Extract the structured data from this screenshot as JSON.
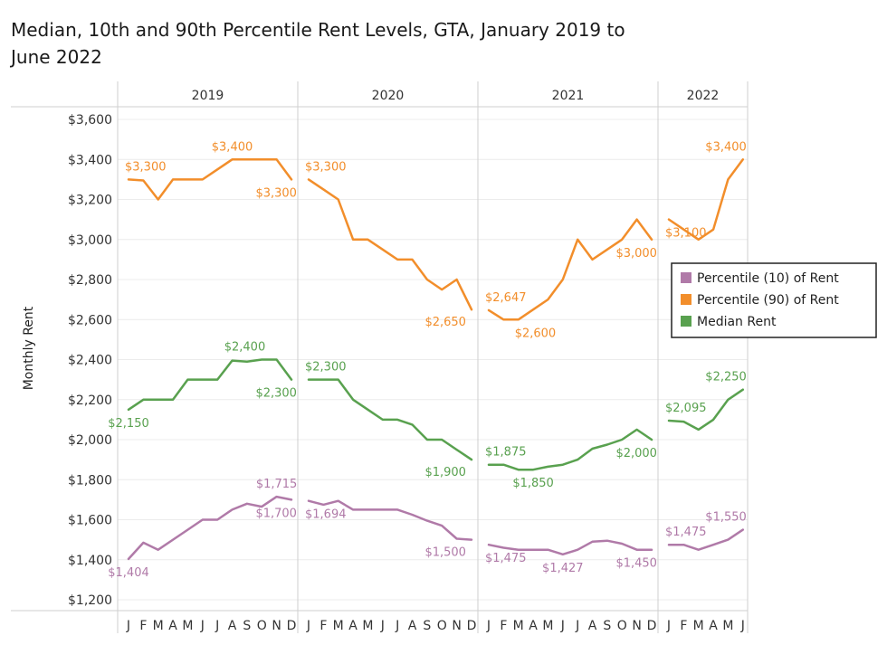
{
  "chart_data": {
    "type": "line",
    "title_lines": [
      "Median, 10th and 90th Percentile Rent Levels, GTA, January 2019 to",
      "June 2022"
    ],
    "ylabel": "Monthly Rent",
    "ylim": [
      1200,
      3600
    ],
    "yticks": [
      1200,
      1400,
      1600,
      1800,
      2000,
      2200,
      2400,
      2600,
      2800,
      3000,
      3200,
      3400,
      3600
    ],
    "ytick_labels": [
      "$1,200",
      "$1,400",
      "$1,600",
      "$1,800",
      "$2,000",
      "$2,200",
      "$2,400",
      "$2,600",
      "$2,800",
      "$3,000",
      "$3,200",
      "$3,400",
      "$3,600"
    ],
    "years": [
      {
        "label": "2019",
        "months": 12
      },
      {
        "label": "2020",
        "months": 12
      },
      {
        "label": "2021",
        "months": 12
      },
      {
        "label": "2022",
        "months": 6
      }
    ],
    "month_letters": [
      "J",
      "F",
      "M",
      "A",
      "M",
      "J",
      "J",
      "A",
      "S",
      "O",
      "N",
      "D"
    ],
    "gridlines": "horizontal",
    "legend_position": "right",
    "series": [
      {
        "name": "Percentile (10) of Rent",
        "color": "#b07aa8",
        "values": [
          [
            1404,
            1485,
            1450,
            1500,
            1550,
            1600,
            1600,
            1650,
            1680,
            1665,
            1715,
            1700
          ],
          [
            1694,
            1675,
            1694,
            1650,
            1650,
            1650,
            1650,
            1625,
            1595,
            1570,
            1505,
            1500
          ],
          [
            1475,
            1460,
            1450,
            1450,
            1450,
            1427,
            1450,
            1490,
            1495,
            1480,
            1450,
            1450
          ],
          [
            1475,
            1475,
            1450,
            1475,
            1500,
            1550
          ]
        ],
        "labels": [
          {
            "year": 0,
            "month": 0,
            "text": "$1,404",
            "pos": "below"
          },
          {
            "year": 0,
            "month": 10,
            "text": "$1,715",
            "pos": "above"
          },
          {
            "year": 0,
            "month": 11,
            "text": "$1,700",
            "pos": "belowleft"
          },
          {
            "year": 1,
            "month": 0,
            "text": "$1,694",
            "pos": "belowright"
          },
          {
            "year": 1,
            "month": 11,
            "text": "$1,500",
            "pos": "left"
          },
          {
            "year": 2,
            "month": 0,
            "text": "$1,475",
            "pos": "belowright"
          },
          {
            "year": 2,
            "month": 5,
            "text": "$1,427",
            "pos": "below"
          },
          {
            "year": 2,
            "month": 11,
            "text": "$1,450",
            "pos": "belowleft"
          },
          {
            "year": 3,
            "month": 0,
            "text": "$1,475",
            "pos": "aboveright"
          },
          {
            "year": 3,
            "month": 5,
            "text": "$1,550",
            "pos": "aboveleft"
          }
        ]
      },
      {
        "name": "Percentile (90) of Rent",
        "color": "#f28e2b",
        "values": [
          [
            3300,
            3295,
            3200,
            3300,
            3300,
            3300,
            3350,
            3400,
            3400,
            3400,
            3400,
            3300
          ],
          [
            3300,
            3250,
            3200,
            3000,
            3000,
            2950,
            2900,
            2900,
            2800,
            2750,
            2800,
            2650
          ],
          [
            2647,
            2600,
            2600,
            2650,
            2700,
            2800,
            3000,
            2900,
            2950,
            3000,
            3100,
            3000
          ],
          [
            3100,
            3050,
            3000,
            3050,
            3300,
            3400
          ]
        ],
        "labels": [
          {
            "year": 0,
            "month": 0,
            "text": "$3,300",
            "pos": "aboveright"
          },
          {
            "year": 0,
            "month": 7,
            "text": "$3,400",
            "pos": "above"
          },
          {
            "year": 0,
            "month": 11,
            "text": "$3,300",
            "pos": "belowleft"
          },
          {
            "year": 1,
            "month": 0,
            "text": "$3,300",
            "pos": "aboveright"
          },
          {
            "year": 1,
            "month": 11,
            "text": "$2,650",
            "pos": "left"
          },
          {
            "year": 2,
            "month": 0,
            "text": "$2,647",
            "pos": "aboveright"
          },
          {
            "year": 2,
            "month": 2,
            "text": "$2,600",
            "pos": "belowright"
          },
          {
            "year": 2,
            "month": 11,
            "text": "$3,000",
            "pos": "belowleft"
          },
          {
            "year": 3,
            "month": 0,
            "text": "$3,100",
            "pos": "belowright"
          },
          {
            "year": 3,
            "month": 5,
            "text": "$3,400",
            "pos": "aboveleft"
          }
        ]
      },
      {
        "name": "Median Rent",
        "color": "#59a14f",
        "values": [
          [
            2150,
            2200,
            2200,
            2200,
            2300,
            2300,
            2300,
            2395,
            2390,
            2400,
            2400,
            2300
          ],
          [
            2300,
            2300,
            2300,
            2200,
            2150,
            2100,
            2100,
            2075,
            2000,
            2000,
            1950,
            1900
          ],
          [
            1875,
            1875,
            1850,
            1850,
            1865,
            1875,
            1900,
            1955,
            1975,
            2000,
            2050,
            2000
          ],
          [
            2095,
            2090,
            2050,
            2100,
            2200,
            2250
          ]
        ],
        "labels": [
          {
            "year": 0,
            "month": 0,
            "text": "$2,150",
            "pos": "below"
          },
          {
            "year": 0,
            "month": 9,
            "text": "$2,400",
            "pos": "aboveleft"
          },
          {
            "year": 0,
            "month": 11,
            "text": "$2,300",
            "pos": "belowleft"
          },
          {
            "year": 1,
            "month": 0,
            "text": "$2,300",
            "pos": "aboveright"
          },
          {
            "year": 1,
            "month": 11,
            "text": "$1,900",
            "pos": "left"
          },
          {
            "year": 2,
            "month": 0,
            "text": "$1,875",
            "pos": "aboveright"
          },
          {
            "year": 2,
            "month": 3,
            "text": "$1,850",
            "pos": "below"
          },
          {
            "year": 2,
            "month": 11,
            "text": "$2,000",
            "pos": "belowleft"
          },
          {
            "year": 3,
            "month": 0,
            "text": "$2,095",
            "pos": "aboveright"
          },
          {
            "year": 3,
            "month": 5,
            "text": "$2,250",
            "pos": "aboveleft"
          }
        ]
      }
    ]
  }
}
